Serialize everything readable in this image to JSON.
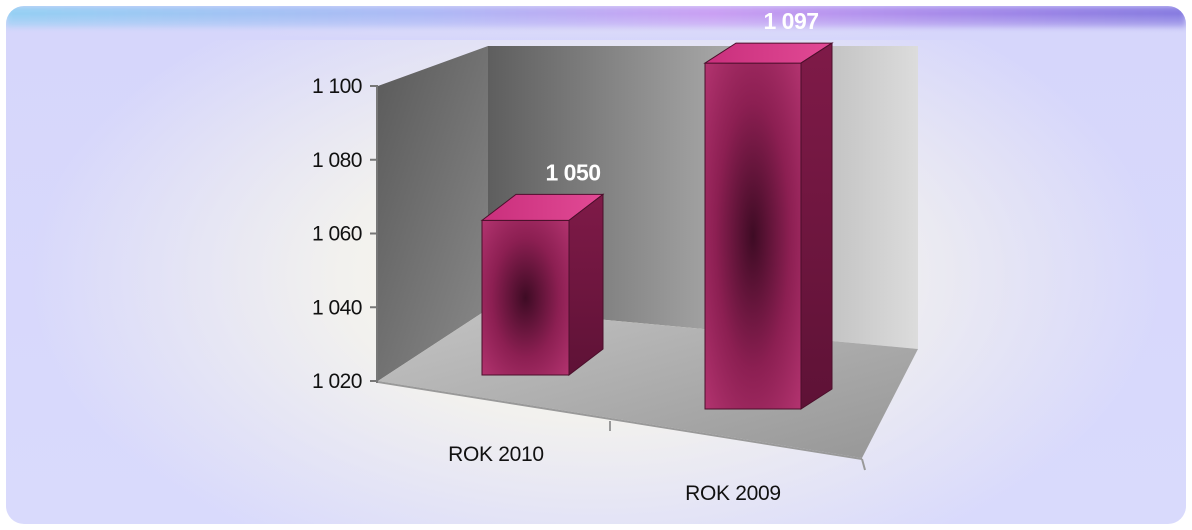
{
  "chart_data": {
    "type": "bar",
    "style": "3d-column",
    "categories": [
      "ROK 2010",
      "ROK 2009"
    ],
    "values": [
      1050,
      1097
    ],
    "data_labels": [
      "1 050",
      "1 097"
    ],
    "y_ticks": [
      "1 020",
      "1 040",
      "1 060",
      "1 080",
      "1 100"
    ],
    "ylim": [
      1020,
      1100
    ],
    "grid": false,
    "legend": "none",
    "colors": {
      "bar_front": "#a0275f",
      "bar_center": "#4a0f2c",
      "bar_top": "#d23a86",
      "bar_side": "#70173f",
      "back_wall": "#8a8a8a",
      "floor": "#a9a9a9"
    }
  }
}
